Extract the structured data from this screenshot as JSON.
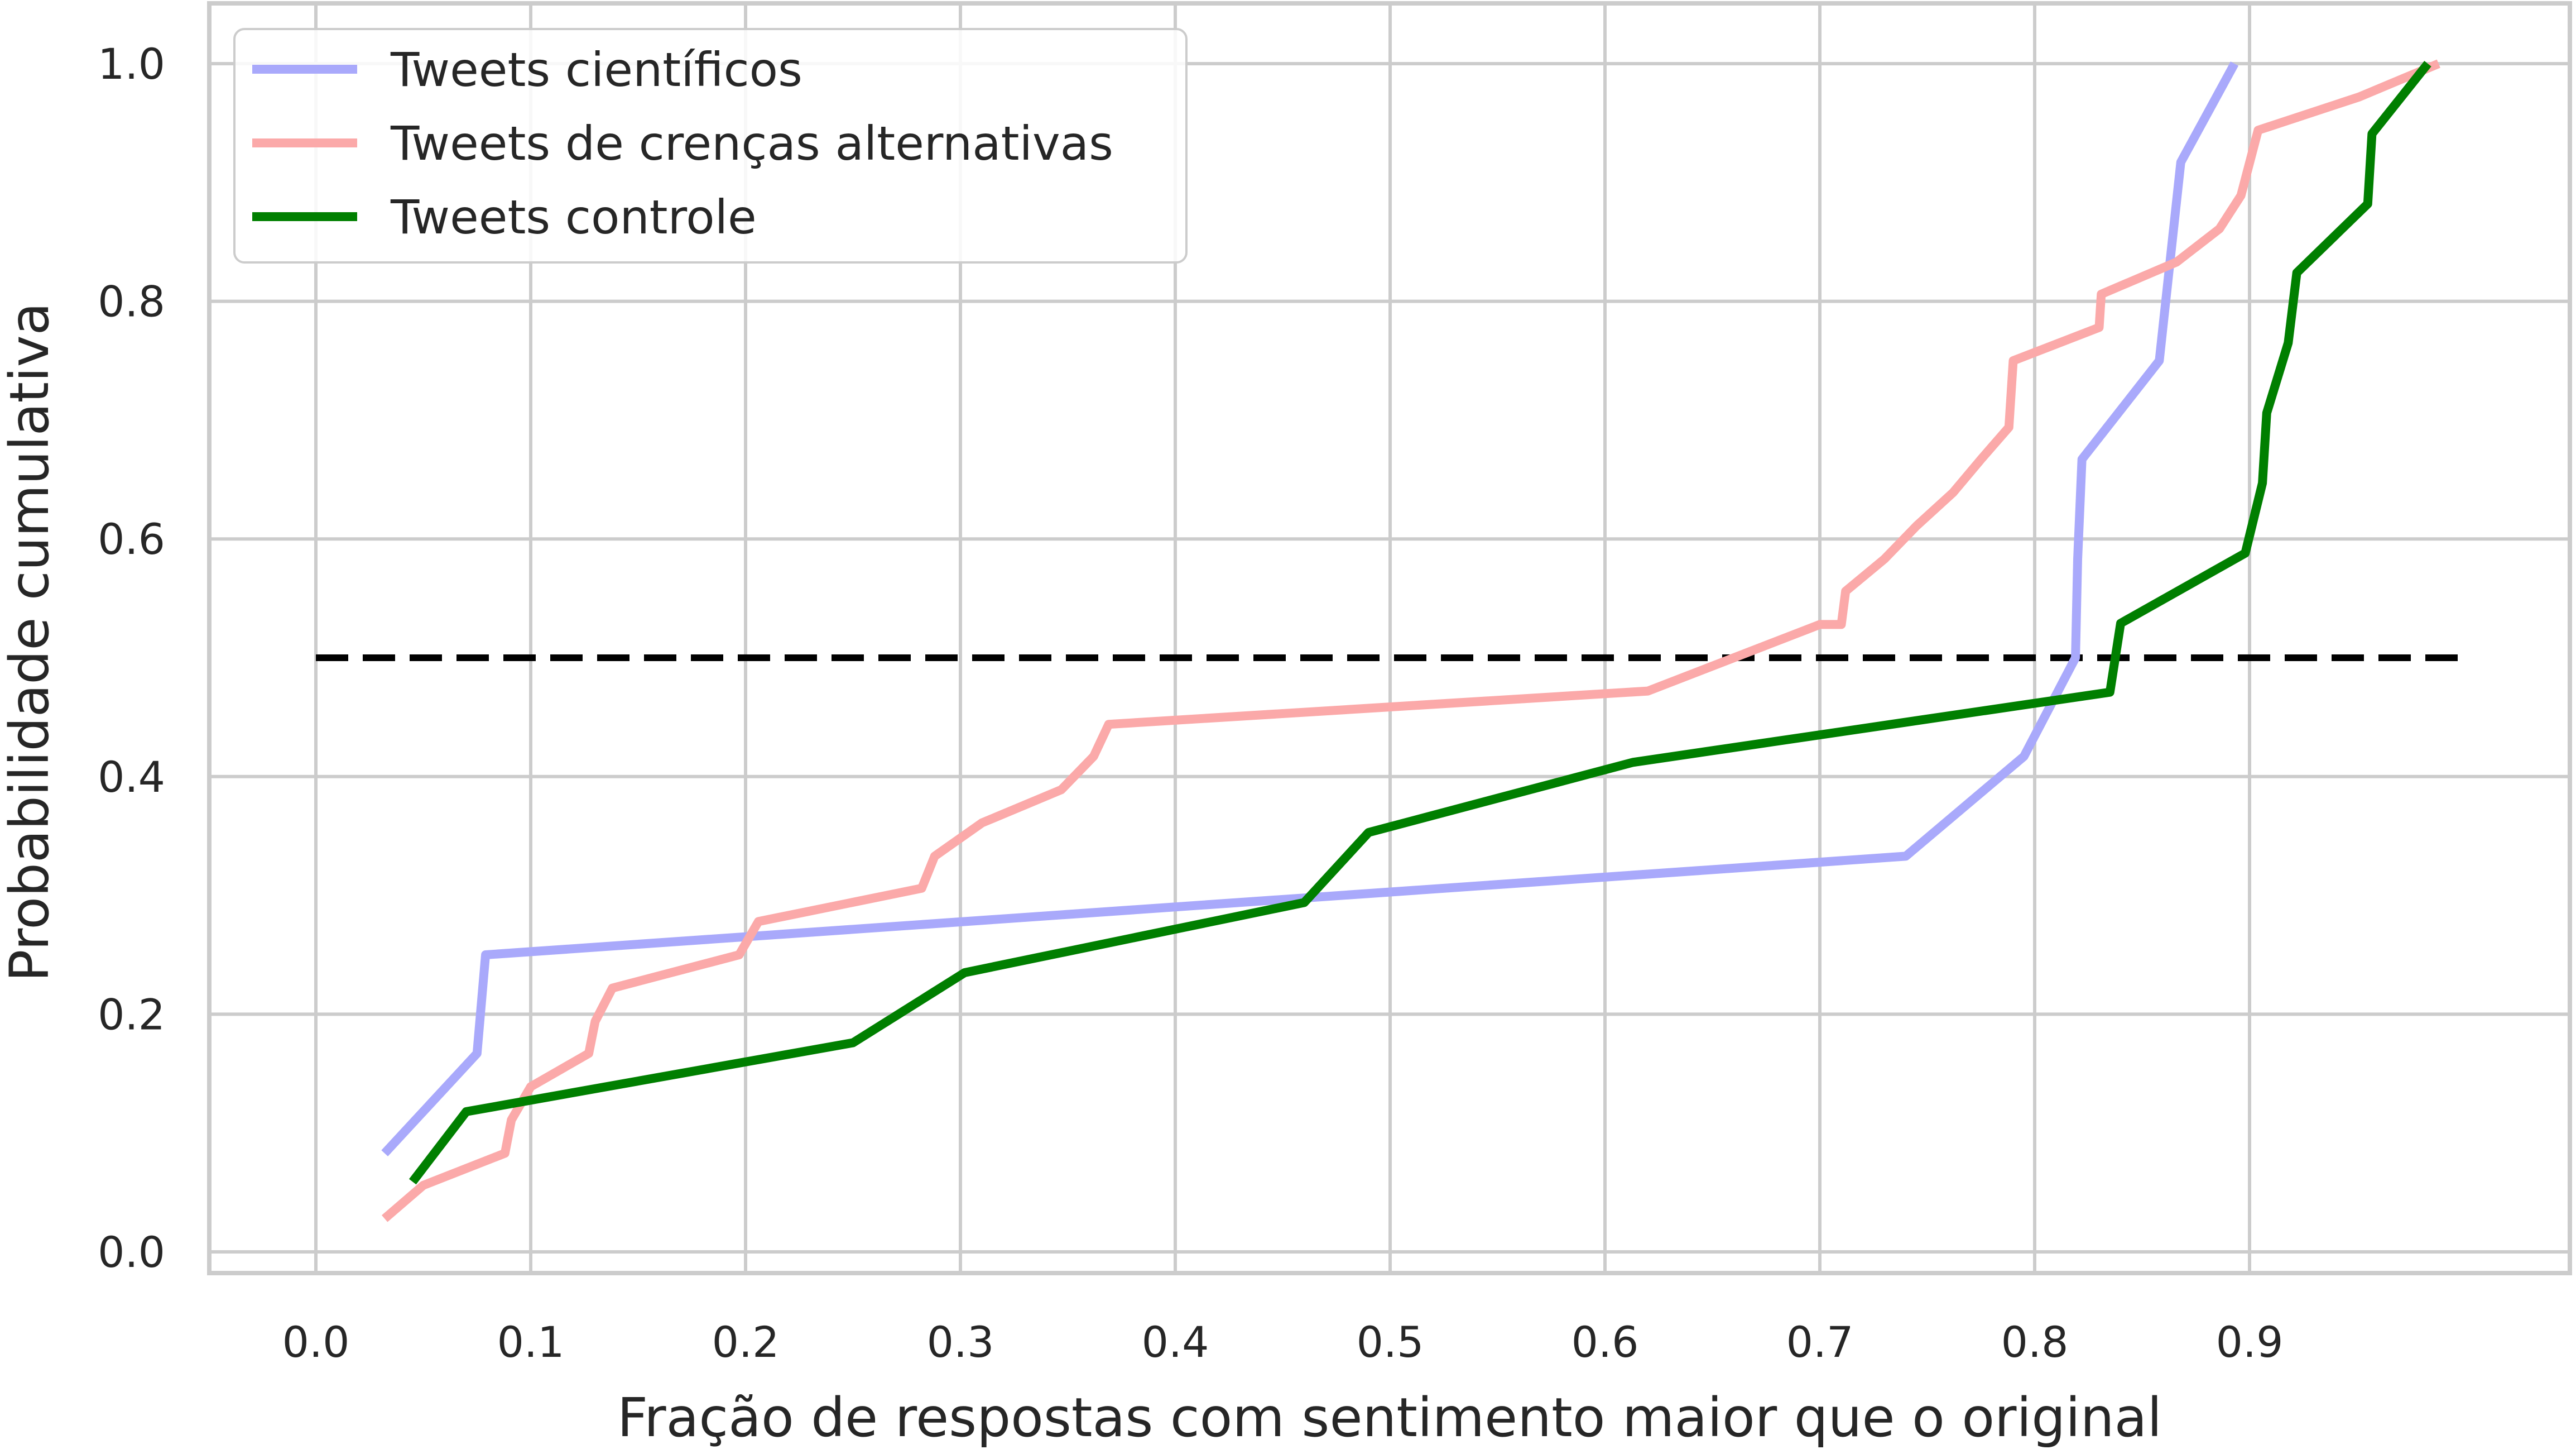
{
  "chart_data": {
    "type": "line",
    "title": "",
    "xlabel": "Fração de respostas com sentimento maior que o original",
    "ylabel": "Probabilidade cumulativa",
    "xlim": [
      -0.05,
      1.05
    ],
    "ylim": [
      -0.02,
      1.05
    ],
    "xticks": [
      "0.0",
      "0.1",
      "0.2",
      "0.3",
      "0.4",
      "0.5",
      "0.6",
      "0.7",
      "0.8",
      "0.9"
    ],
    "yticks": [
      "0.0",
      "0.2",
      "0.4",
      "0.6",
      "0.8",
      "1.0"
    ],
    "grid": true,
    "legend_position": "top-left",
    "reference_line": {
      "y": 0.5,
      "x_range": [
        0.0,
        1.0
      ],
      "style": "dashed",
      "color": "#000000"
    },
    "series": [
      {
        "name": "Tweets científicos",
        "color": "#a9a9fb",
        "x": [
          0.032,
          0.075,
          0.079,
          0.74,
          0.795,
          0.819,
          0.82,
          0.822,
          0.858,
          0.868,
          0.893
        ],
        "y": [
          0.083,
          0.167,
          0.25,
          0.333,
          0.417,
          0.5,
          0.583,
          0.667,
          0.75,
          0.917,
          1.0
        ]
      },
      {
        "name": "Tweets de crenças alternativas",
        "color": "#fba9a9",
        "x": [
          0.032,
          0.05,
          0.088,
          0.091,
          0.1,
          0.127,
          0.13,
          0.138,
          0.197,
          0.206,
          0.282,
          0.288,
          0.31,
          0.347,
          0.362,
          0.369,
          0.62,
          0.7,
          0.71,
          0.712,
          0.73,
          0.745,
          0.762,
          0.775,
          0.788,
          0.79,
          0.83,
          0.831,
          0.866,
          0.886,
          0.896,
          0.904,
          0.951,
          0.988
        ],
        "y": [
          0.028,
          0.056,
          0.083,
          0.111,
          0.139,
          0.167,
          0.194,
          0.222,
          0.25,
          0.278,
          0.306,
          0.333,
          0.361,
          0.389,
          0.417,
          0.444,
          0.472,
          0.528,
          0.528,
          0.556,
          0.583,
          0.611,
          0.639,
          0.667,
          0.694,
          0.75,
          0.778,
          0.806,
          0.833,
          0.861,
          0.889,
          0.944,
          0.972,
          1.0
        ]
      },
      {
        "name": "Tweets controle",
        "color": "#007f00",
        "x": [
          0.045,
          0.07,
          0.25,
          0.302,
          0.46,
          0.49,
          0.613,
          0.835,
          0.84,
          0.898,
          0.906,
          0.908,
          0.918,
          0.922,
          0.955,
          0.957,
          0.983
        ],
        "y": [
          0.059,
          0.118,
          0.176,
          0.235,
          0.294,
          0.353,
          0.412,
          0.471,
          0.529,
          0.588,
          0.647,
          0.706,
          0.765,
          0.824,
          0.882,
          0.941,
          1.0
        ]
      }
    ]
  }
}
